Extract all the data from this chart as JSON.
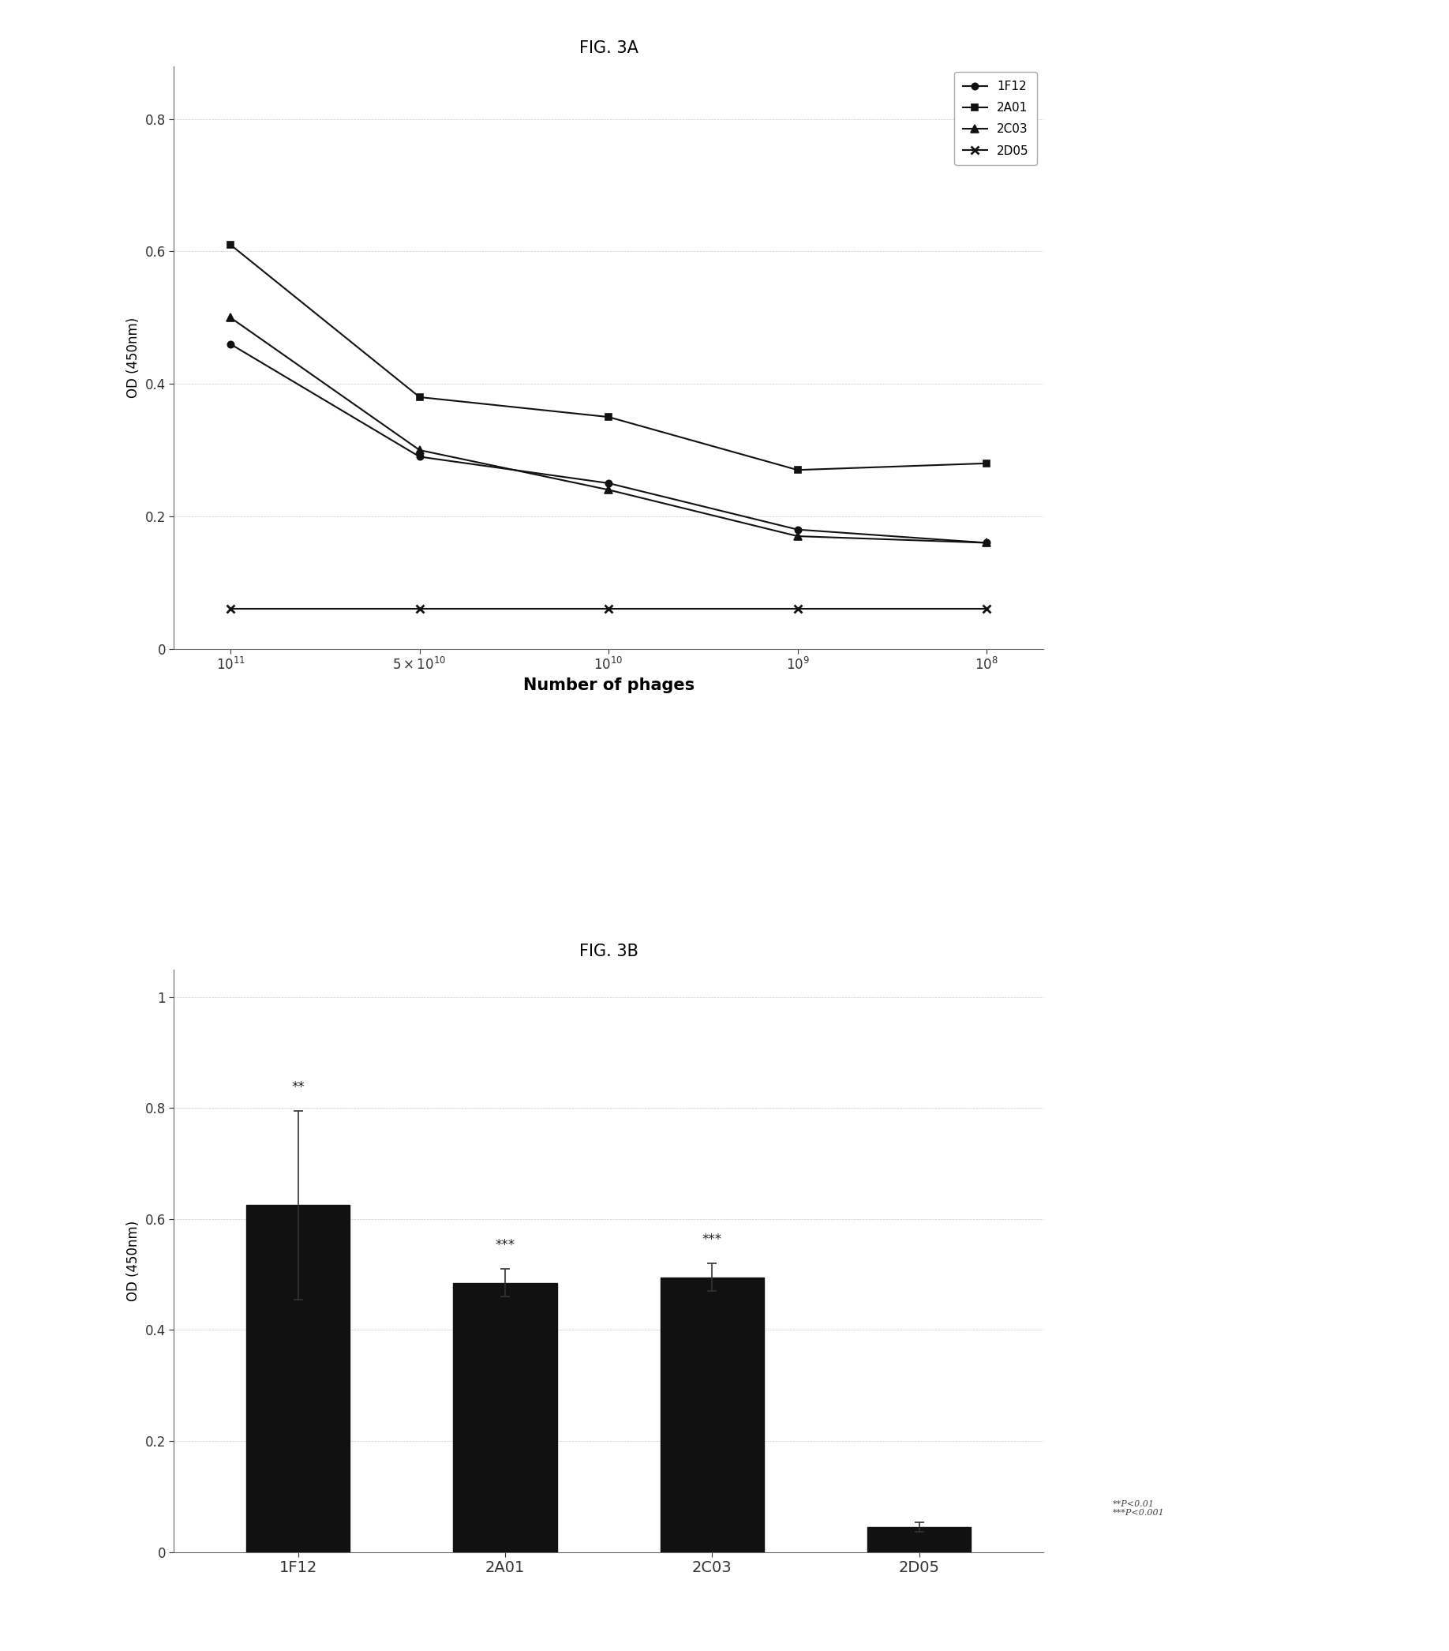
{
  "fig3a": {
    "title": "FIG. 3A",
    "xlabel": "Number of phages",
    "ylabel": "OD (450nm)",
    "x_labels": [
      "$10^{11}$",
      "$5\\times10^{10}$",
      "$10^{10}$",
      "$10^{9}$",
      "$10^{8}$"
    ],
    "x_positions": [
      0,
      1,
      2,
      3,
      4
    ],
    "series_order": [
      "1F12",
      "2A01",
      "2C03",
      "2D05"
    ],
    "series": {
      "1F12": {
        "values": [
          0.46,
          0.29,
          0.25,
          0.18,
          0.16
        ],
        "marker": "o",
        "color": "#111111",
        "linestyle": "-",
        "mfc": "#111111"
      },
      "2A01": {
        "values": [
          0.61,
          0.38,
          0.35,
          0.27,
          0.28
        ],
        "marker": "s",
        "color": "#111111",
        "linestyle": "-",
        "mfc": "#111111"
      },
      "2C03": {
        "values": [
          0.5,
          0.3,
          0.24,
          0.17,
          0.16
        ],
        "marker": "^",
        "color": "#111111",
        "linestyle": "-",
        "mfc": "#111111"
      },
      "2D05": {
        "values": [
          0.06,
          0.06,
          0.06,
          0.06,
          0.06
        ],
        "marker": "x",
        "color": "#111111",
        "linestyle": "-",
        "mfc": "none"
      }
    },
    "ylim": [
      0,
      0.88
    ],
    "yticks": [
      0,
      0.2,
      0.4,
      0.6,
      0.8
    ],
    "ytick_labels": [
      "0",
      "0.2",
      "0.4",
      "0.6",
      "0.8"
    ]
  },
  "fig3b": {
    "title": "FIG. 3B",
    "xlabel": "",
    "ylabel": "OD (450nm)",
    "categories": [
      "1F12",
      "2A01",
      "2C03",
      "2D05"
    ],
    "values": [
      0.625,
      0.485,
      0.495,
      0.045
    ],
    "errors": [
      0.17,
      0.025,
      0.025,
      0.008
    ],
    "bar_color": "#111111",
    "annotations": [
      "**",
      "***",
      "***",
      ""
    ],
    "ylim": [
      0,
      1.05
    ],
    "yticks": [
      0,
      0.2,
      0.4,
      0.6,
      0.8,
      1.0
    ],
    "ytick_labels": [
      "0",
      "0.2",
      "0.4",
      "0.6",
      "0.8",
      "1"
    ],
    "legend_text": "**P<0.01\n***P<0.001",
    "legend_fontsize": 8
  },
  "background_color": "#ffffff"
}
